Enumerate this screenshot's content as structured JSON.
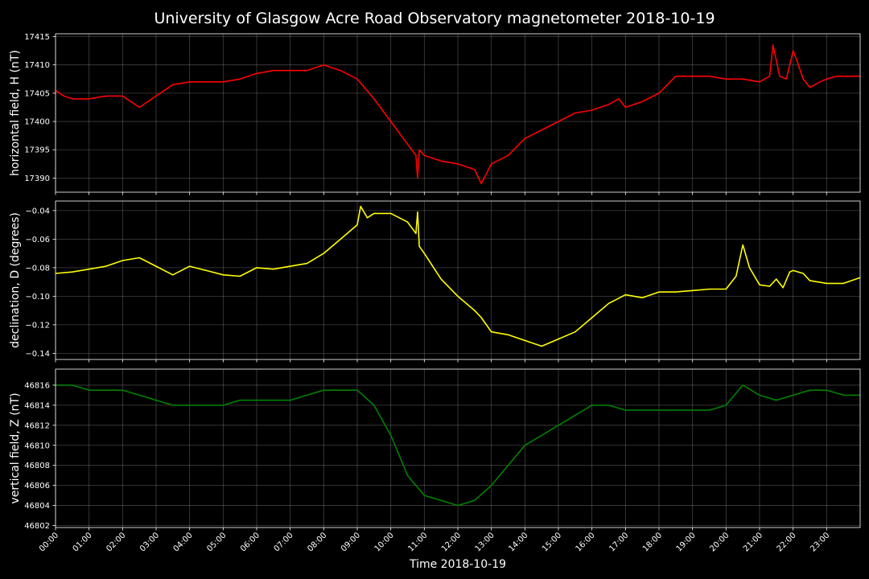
{
  "chart_data": {
    "type": "line",
    "title": "University of Glasgow Acre Road Observatory magnetometer 2018-10-19",
    "xlabel": "Time 2018-10-19",
    "x_ticks": [
      "00:00",
      "01:00",
      "02:00",
      "03:00",
      "04:00",
      "05:00",
      "06:00",
      "07:00",
      "08:00",
      "09:00",
      "10:00",
      "11:00",
      "12:00",
      "13:00",
      "14:00",
      "15:00",
      "16:00",
      "17:00",
      "18:00",
      "19:00",
      "20:00",
      "21:00",
      "22:00",
      "23:00"
    ],
    "x_range_hours": [
      0,
      24
    ],
    "grid": true,
    "panels": [
      {
        "ylabel": "horizontal field, H (nT)",
        "color": "#ff0000",
        "ylim": [
          17387.5,
          17415.5
        ],
        "yticks": [
          17390,
          17395,
          17400,
          17405,
          17410,
          17415
        ],
        "series": {
          "x": [
            0,
            0.25,
            0.5,
            1,
            1.5,
            2,
            2.5,
            3,
            3.5,
            4,
            5,
            5.5,
            6,
            6.5,
            7,
            7.5,
            8,
            8.5,
            9,
            9.5,
            10,
            10.5,
            10.75,
            10.8,
            10.85,
            11,
            11.5,
            12,
            12.5,
            12.7,
            13,
            13.5,
            14,
            14.5,
            15,
            15.5,
            16,
            16.5,
            16.8,
            17,
            17.5,
            18,
            18.5,
            19,
            19.5,
            20,
            20.5,
            21,
            21.3,
            21.4,
            21.6,
            21.8,
            22,
            22.1,
            22.3,
            22.5,
            22.8,
            23,
            23.3,
            24
          ],
          "y": [
            17405.5,
            17404.5,
            17404,
            17404,
            17404.5,
            17404.5,
            17402.5,
            17404.5,
            17406.5,
            17407,
            17407,
            17407.5,
            17408.5,
            17409,
            17409,
            17409,
            17410,
            17409,
            17407.5,
            17404,
            17400,
            17396,
            17394,
            17390,
            17395,
            17394,
            17393,
            17392.5,
            17391.5,
            17389,
            17392.5,
            17394,
            17397,
            17398.5,
            17400,
            17401.5,
            17402,
            17403,
            17404,
            17402.5,
            17403.5,
            17405,
            17408,
            17408,
            17408,
            17407.5,
            17407.5,
            17407,
            17408,
            17413.5,
            17408,
            17407.5,
            17412.5,
            17411,
            17407.5,
            17406,
            17407,
            17407.5,
            17408,
            17408
          ]
        }
      },
      {
        "ylabel": "declination, D (degrees)",
        "color": "#ffff00",
        "ylim": [
          -0.1443,
          -0.0333
        ],
        "yticks": [
          -0.04,
          -0.06,
          -0.08,
          -0.1,
          -0.12,
          -0.14
        ],
        "ytick_labels": [
          "−0.04",
          "−0.06",
          "−0.08",
          "−0.10",
          "−0.12",
          "−0.14"
        ],
        "series": {
          "x": [
            0,
            0.5,
            1,
            1.5,
            2,
            2.5,
            3,
            3.5,
            4,
            4.5,
            5,
            5.5,
            6,
            6.5,
            7,
            7.5,
            8,
            8.5,
            9,
            9.1,
            9.3,
            9.5,
            10,
            10.5,
            10.75,
            10.8,
            10.85,
            11,
            11.5,
            12,
            12.5,
            12.7,
            13,
            13.5,
            14,
            14.5,
            15,
            15.5,
            16,
            16.5,
            17,
            17.5,
            18,
            18.5,
            19,
            19.5,
            20,
            20.3,
            20.5,
            20.7,
            21,
            21.3,
            21.5,
            21.7,
            21.9,
            22,
            22.3,
            22.5,
            23,
            23.5,
            24
          ],
          "y": [
            -0.084,
            -0.083,
            -0.081,
            -0.079,
            -0.075,
            -0.073,
            -0.079,
            -0.085,
            -0.079,
            -0.082,
            -0.085,
            -0.086,
            -0.08,
            -0.081,
            -0.079,
            -0.077,
            -0.07,
            -0.06,
            -0.05,
            -0.037,
            -0.045,
            -0.042,
            -0.042,
            -0.048,
            -0.056,
            -0.041,
            -0.065,
            -0.07,
            -0.088,
            -0.1,
            -0.11,
            -0.115,
            -0.125,
            -0.127,
            -0.131,
            -0.135,
            -0.13,
            -0.125,
            -0.115,
            -0.105,
            -0.099,
            -0.101,
            -0.097,
            -0.097,
            -0.096,
            -0.095,
            -0.095,
            -0.086,
            -0.064,
            -0.08,
            -0.092,
            -0.093,
            -0.088,
            -0.094,
            -0.083,
            -0.082,
            -0.084,
            -0.089,
            -0.091,
            -0.091,
            -0.087
          ]
        }
      },
      {
        "ylabel": "vertical field, Z (nT)",
        "color": "#008000",
        "ylim": [
          46801.8,
          46817.6
        ],
        "yticks": [
          46802,
          46804,
          46806,
          46808,
          46810,
          46812,
          46814,
          46816
        ],
        "series": {
          "x": [
            0,
            0.5,
            1,
            1.5,
            2,
            2.5,
            3,
            3.5,
            4,
            4.5,
            5,
            5.5,
            6,
            6.5,
            7,
            7.5,
            8,
            8.5,
            9,
            9.5,
            10,
            10.5,
            11,
            11.5,
            12,
            12.5,
            13,
            13.5,
            14,
            14.5,
            15,
            15.5,
            16,
            16.5,
            17,
            17.5,
            18,
            18.5,
            19,
            19.5,
            20,
            20.5,
            21,
            21.5,
            22,
            22.5,
            23,
            23.5,
            24
          ],
          "y": [
            46816,
            46816,
            46815.5,
            46815.5,
            46815.5,
            46815,
            46814.5,
            46814,
            46814,
            46814,
            46814,
            46814.5,
            46814.5,
            46814.5,
            46814.5,
            46815,
            46815.5,
            46815.5,
            46815.5,
            46814,
            46811,
            46807,
            46805,
            46804.5,
            46804,
            46804.5,
            46806,
            46808,
            46810,
            46811,
            46812,
            46813,
            46814,
            46814,
            46813.5,
            46813.5,
            46813.5,
            46813.5,
            46813.5,
            46813.5,
            46814,
            46816,
            46815,
            46814.5,
            46815,
            46815.5,
            46815.5,
            46815,
            46815
          ]
        }
      }
    ]
  }
}
